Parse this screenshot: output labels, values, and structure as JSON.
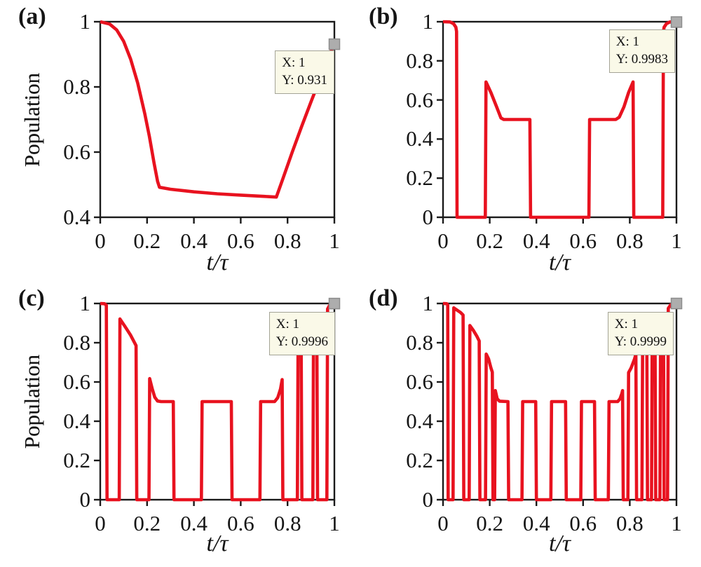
{
  "colors": {
    "trace": "#e8121f",
    "frame": "#1a1a1a",
    "datatip_bg": "#faf9e8",
    "datatip_border": "#a3a396",
    "marker_fill": "#adadad",
    "marker_edge": "#8c8c8c"
  },
  "chart_data": [
    {
      "type": "line",
      "panel_label": "(a)",
      "xlabel": "t/τ",
      "ylabel": "Population",
      "xlim": [
        0,
        1
      ],
      "ylim": [
        0.4,
        1
      ],
      "xticks": [
        "0",
        "0.2",
        "0.4",
        "0.6",
        "0.8",
        "1"
      ],
      "yticks": [
        "0.4",
        "0.6",
        "0.8",
        "1"
      ],
      "grid": false,
      "legend": null,
      "datatip": {
        "line1": "X: 1",
        "line2": "Y: 0.931",
        "x": 1,
        "y": 0.931
      },
      "marker": {
        "x": 1,
        "y": 0.931
      },
      "series": [
        {
          "name": "population",
          "points": [
            [
              0,
              1
            ],
            [
              0.04,
              0.993
            ],
            [
              0.07,
              0.975
            ],
            [
              0.1,
              0.94
            ],
            [
              0.13,
              0.885
            ],
            [
              0.16,
              0.812
            ],
            [
              0.19,
              0.718
            ],
            [
              0.21,
              0.648
            ],
            [
              0.23,
              0.566
            ],
            [
              0.245,
              0.51
            ],
            [
              0.253,
              0.492
            ],
            [
              0.3,
              0.486
            ],
            [
              0.4,
              0.478
            ],
            [
              0.5,
              0.472
            ],
            [
              0.6,
              0.468
            ],
            [
              0.7,
              0.464
            ],
            [
              0.752,
              0.462
            ],
            [
              0.78,
              0.518
            ],
            [
              0.82,
              0.6
            ],
            [
              0.86,
              0.678
            ],
            [
              0.9,
              0.754
            ],
            [
              0.94,
              0.828
            ],
            [
              0.97,
              0.882
            ],
            [
              0.99,
              0.917
            ],
            [
              1,
              0.931
            ]
          ]
        }
      ]
    },
    {
      "type": "line",
      "panel_label": "(b)",
      "xlabel": "t/τ",
      "ylabel": "Population",
      "xlim": [
        0,
        1
      ],
      "ylim": [
        0,
        1
      ],
      "xticks": [
        "0",
        "0.2",
        "0.4",
        "0.6",
        "0.8",
        "1"
      ],
      "yticks": [
        "0",
        "0.2",
        "0.4",
        "0.6",
        "0.8",
        "1"
      ],
      "grid": false,
      "legend": null,
      "datatip": {
        "line1": "X: 1",
        "line2": "Y: 0.9983",
        "x": 1,
        "y": 0.9983
      },
      "marker": {
        "x": 1,
        "y": 0.9983
      },
      "series": [
        {
          "name": "population",
          "points": [
            [
              0,
              1
            ],
            [
              0.03,
              0.999
            ],
            [
              0.045,
              0.99
            ],
            [
              0.055,
              0.972
            ],
            [
              0.058,
              0.95
            ],
            [
              0.06,
              0
            ],
            [
              0.181,
              0
            ],
            [
              0.184,
              0.692
            ],
            [
              0.205,
              0.638
            ],
            [
              0.23,
              0.563
            ],
            [
              0.248,
              0.508
            ],
            [
              0.26,
              0.5
            ],
            [
              0.372,
              0.5
            ],
            [
              0.375,
              0
            ],
            [
              0.625,
              0
            ],
            [
              0.628,
              0.5
            ],
            [
              0.74,
              0.5
            ],
            [
              0.755,
              0.512
            ],
            [
              0.775,
              0.565
            ],
            [
              0.795,
              0.638
            ],
            [
              0.814,
              0.692
            ],
            [
              0.817,
              0
            ],
            [
              0.941,
              0
            ],
            [
              0.944,
              0.95
            ],
            [
              0.947,
              0.972
            ],
            [
              0.957,
              0.99
            ],
            [
              0.972,
              0.999
            ],
            [
              1,
              0.9983
            ]
          ]
        }
      ]
    },
    {
      "type": "line",
      "panel_label": "(c)",
      "xlabel": "t/τ",
      "ylabel": "Population",
      "xlim": [
        0,
        1
      ],
      "ylim": [
        0,
        1
      ],
      "xticks": [
        "0",
        "0.2",
        "0.4",
        "0.6",
        "0.8",
        "1"
      ],
      "yticks": [
        "0",
        "0.2",
        "0.4",
        "0.6",
        "0.8",
        "1"
      ],
      "grid": false,
      "legend": null,
      "datatip": {
        "line1": "X: 1",
        "line2": "Y: 0.9996",
        "x": 1,
        "y": 0.9996
      },
      "marker": {
        "x": 1,
        "y": 0.9996
      },
      "series": [
        {
          "name": "population",
          "points": [
            [
              0,
              1
            ],
            [
              0.018,
              0.999
            ],
            [
              0.026,
              0.991
            ],
            [
              0.029,
              0
            ],
            [
              0.081,
              0
            ],
            [
              0.084,
              0.921
            ],
            [
              0.105,
              0.884
            ],
            [
              0.13,
              0.838
            ],
            [
              0.15,
              0.792
            ],
            [
              0.153,
              0.785
            ],
            [
              0.156,
              0
            ],
            [
              0.208,
              0
            ],
            [
              0.211,
              0.617
            ],
            [
              0.222,
              0.566
            ],
            [
              0.233,
              0.522
            ],
            [
              0.245,
              0.503
            ],
            [
              0.26,
              0.5
            ],
            [
              0.312,
              0.5
            ],
            [
              0.315,
              0
            ],
            [
              0.432,
              0
            ],
            [
              0.435,
              0.5
            ],
            [
              0.56,
              0.5
            ],
            [
              0.563,
              0
            ],
            [
              0.682,
              0
            ],
            [
              0.685,
              0.5
            ],
            [
              0.745,
              0.5
            ],
            [
              0.758,
              0.52
            ],
            [
              0.77,
              0.565
            ],
            [
              0.777,
              0.612
            ],
            [
              0.78,
              0
            ],
            [
              0.842,
              0
            ],
            [
              0.845,
              0.795
            ],
            [
              0.852,
              0.812
            ],
            [
              0.858,
              0.828
            ],
            [
              0.861,
              0
            ],
            [
              0.908,
              0
            ],
            [
              0.911,
              0.902
            ],
            [
              0.919,
              0.922
            ],
            [
              0.925,
              0.938
            ],
            [
              0.928,
              0
            ],
            [
              0.968,
              0
            ],
            [
              0.971,
              0.972
            ],
            [
              0.982,
              0.996
            ],
            [
              0.99,
              1
            ],
            [
              1,
              0.9996
            ]
          ]
        }
      ]
    },
    {
      "type": "line",
      "panel_label": "(d)",
      "xlabel": "t/τ",
      "ylabel": "Population",
      "xlim": [
        0,
        1
      ],
      "ylim": [
        0,
        1
      ],
      "xticks": [
        "0",
        "0.2",
        "0.4",
        "0.6",
        "0.8",
        "1"
      ],
      "yticks": [
        "0",
        "0.2",
        "0.4",
        "0.6",
        "0.8",
        "1"
      ],
      "grid": false,
      "legend": null,
      "datatip": {
        "line1": "X: 1",
        "line2": "Y: 0.9999",
        "x": 1,
        "y": 0.9999
      },
      "marker": {
        "x": 1,
        "y": 0.9999
      },
      "series": [
        {
          "name": "population",
          "points": [
            [
              0,
              1
            ],
            [
              0.016,
              0.999
            ],
            [
              0.02,
              0.993
            ],
            [
              0.022,
              0
            ],
            [
              0.043,
              0
            ],
            [
              0.046,
              0.978
            ],
            [
              0.06,
              0.966
            ],
            [
              0.075,
              0.954
            ],
            [
              0.086,
              0.941
            ],
            [
              0.089,
              0
            ],
            [
              0.112,
              0
            ],
            [
              0.115,
              0.888
            ],
            [
              0.13,
              0.863
            ],
            [
              0.145,
              0.833
            ],
            [
              0.155,
              0.809
            ],
            [
              0.158,
              0
            ],
            [
              0.182,
              0
            ],
            [
              0.185,
              0.742
            ],
            [
              0.195,
              0.718
            ],
            [
              0.205,
              0.672
            ],
            [
              0.211,
              0.65
            ],
            [
              0.214,
              0
            ],
            [
              0.221,
              0
            ],
            [
              0.224,
              0.556
            ],
            [
              0.232,
              0.514
            ],
            [
              0.242,
              0.502
            ],
            [
              0.278,
              0.5
            ],
            [
              0.281,
              0
            ],
            [
              0.338,
              0
            ],
            [
              0.341,
              0.5
            ],
            [
              0.397,
              0.5
            ],
            [
              0.4,
              0
            ],
            [
              0.462,
              0
            ],
            [
              0.465,
              0.5
            ],
            [
              0.525,
              0.5
            ],
            [
              0.528,
              0
            ],
            [
              0.59,
              0
            ],
            [
              0.593,
              0.5
            ],
            [
              0.649,
              0.5
            ],
            [
              0.652,
              0
            ],
            [
              0.708,
              0
            ],
            [
              0.711,
              0.5
            ],
            [
              0.748,
              0.5
            ],
            [
              0.758,
              0.514
            ],
            [
              0.766,
              0.541
            ],
            [
              0.769,
              0.556
            ],
            [
              0.772,
              0
            ],
            [
              0.792,
              0
            ],
            [
              0.795,
              0.648
            ],
            [
              0.805,
              0.67
            ],
            [
              0.82,
              0.716
            ],
            [
              0.826,
              0.742
            ],
            [
              0.829,
              0
            ],
            [
              0.852,
              0
            ],
            [
              0.855,
              0.778
            ],
            [
              0.866,
              0.8
            ],
            [
              0.873,
              0.815
            ],
            [
              0.876,
              0
            ],
            [
              0.893,
              0
            ],
            [
              0.896,
              0.848
            ],
            [
              0.905,
              0.868
            ],
            [
              0.908,
              0.88
            ],
            [
              0.911,
              0
            ],
            [
              0.929,
              0
            ],
            [
              0.932,
              0.915
            ],
            [
              0.94,
              0.934
            ],
            [
              0.944,
              0.946
            ],
            [
              0.947,
              0
            ],
            [
              0.962,
              0
            ],
            [
              0.965,
              0.975
            ],
            [
              0.975,
              0.993
            ],
            [
              0.988,
              1
            ],
            [
              1,
              0.9999
            ]
          ]
        }
      ]
    }
  ]
}
